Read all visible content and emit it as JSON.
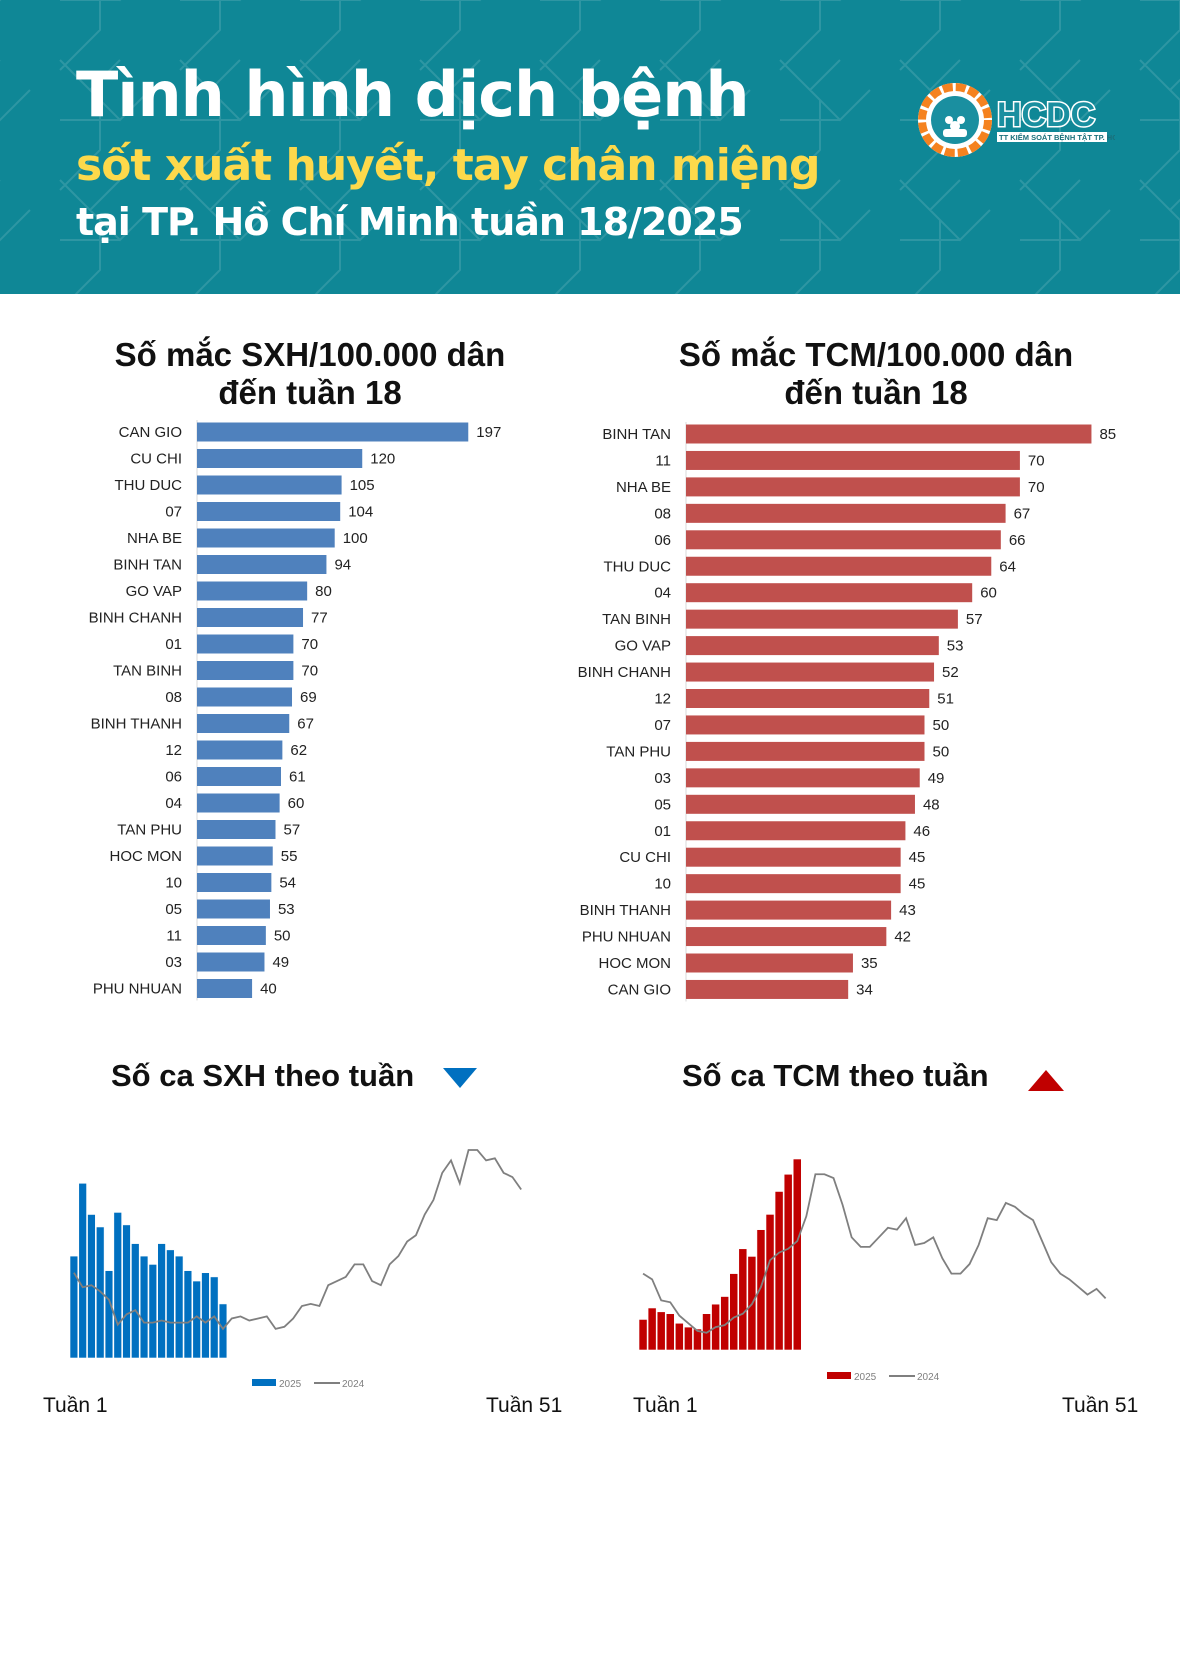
{
  "header": {
    "line1": "Tình hình dịch bệnh",
    "line2": "sốt xuất huyết, tay chân miệng",
    "line3": "tại TP. Hồ Chí Minh tuần 18/2025",
    "logo_text": "HCDC",
    "logo_subtext": "TT KIỂM SOÁT BỆNH TẬT TP. HCM",
    "bg_color": "#0f8796",
    "accent_color": "#fdd94b"
  },
  "chart_data": [
    {
      "type": "bar",
      "orientation": "horizontal",
      "title": "Số mắc SXH/100.000 dân đến tuần 18",
      "title_lines": [
        "Số mắc SXH/100.000 dân",
        "đến tuần 18"
      ],
      "color": "#4f81bd",
      "categories": [
        "CAN GIO",
        "CU CHI",
        "THU DUC",
        "07",
        "NHA BE",
        "BINH TAN",
        "GO VAP",
        "BINH CHANH",
        "01",
        "TAN BINH",
        "08",
        "BINH THANH",
        "12",
        "06",
        "04",
        "TAN PHU",
        "HOC MON",
        "10",
        "05",
        "11",
        "03",
        "PHU NHUAN"
      ],
      "values": [
        197,
        120,
        105,
        104,
        100,
        94,
        80,
        77,
        70,
        70,
        69,
        67,
        62,
        61,
        60,
        57,
        55,
        54,
        53,
        50,
        49,
        40
      ]
    },
    {
      "type": "bar",
      "orientation": "horizontal",
      "title": "Số mắc TCM/100.000 dân đến tuần 18",
      "title_lines": [
        "Số mắc TCM/100.000 dân",
        "đến tuần 18"
      ],
      "color": "#c0504d",
      "categories": [
        "BINH TAN",
        "11",
        "NHA BE",
        "08",
        "06",
        "THU DUC",
        "04",
        "TAN BINH",
        "GO VAP",
        "BINH CHANH",
        "12",
        "07",
        "TAN PHU",
        "03",
        "05",
        "01",
        "CU CHI",
        "10",
        "BINH THANH",
        "PHU NHUAN",
        "HOC MON",
        "CAN GIO"
      ],
      "values": [
        85,
        70,
        70,
        67,
        66,
        64,
        60,
        57,
        53,
        52,
        51,
        50,
        50,
        49,
        48,
        46,
        45,
        45,
        43,
        42,
        35,
        34
      ]
    },
    {
      "type": "bar+line",
      "title": "Số ca SXH theo tuần",
      "trend": "down",
      "trend_color": "#0070c0",
      "x_start_label": "Tuần 1",
      "x_end_label": "Tuần 51",
      "series": [
        {
          "name": "2025",
          "type": "bar",
          "color": "#0070c0",
          "values": [
            49,
            84,
            69,
            63,
            42,
            70,
            64,
            55,
            49,
            45,
            55,
            52,
            49,
            42,
            37,
            41,
            39,
            26
          ]
        },
        {
          "name": "2024",
          "type": "line",
          "color": "#7f7f7f",
          "values": [
            41,
            34,
            35,
            32,
            28,
            16,
            21,
            23,
            17,
            17,
            18,
            17,
            17,
            17,
            20,
            17,
            20,
            14,
            19,
            20,
            18,
            19,
            20,
            14,
            15,
            19,
            25,
            26,
            25,
            35,
            37,
            39,
            45,
            45,
            37,
            35,
            45,
            49,
            56,
            59,
            69,
            76,
            89,
            95,
            84,
            100,
            100,
            95,
            96,
            89,
            87,
            81
          ]
        }
      ]
    },
    {
      "type": "bar+line",
      "title": "Số ca TCM theo tuần",
      "trend": "up",
      "trend_color": "#c00000",
      "x_start_label": "Tuần 1",
      "x_end_label": "Tuần 51",
      "series": [
        {
          "name": "2025",
          "type": "bar",
          "color": "#c00000",
          "values": [
            16,
            22,
            20,
            19,
            14,
            12,
            11,
            19,
            24,
            28,
            40,
            53,
            49,
            63,
            71,
            83,
            92,
            100
          ]
        },
        {
          "name": "2024",
          "type": "line",
          "color": "#7f7f7f",
          "values": [
            40,
            37,
            26,
            25,
            18,
            14,
            10,
            9,
            12,
            13,
            17,
            19,
            24,
            33,
            47,
            51,
            53,
            57,
            70,
            92,
            92,
            90,
            76,
            59,
            54,
            54,
            59,
            64,
            63,
            69,
            55,
            56,
            59,
            48,
            40,
            40,
            45,
            55,
            69,
            68,
            77,
            75,
            71,
            68,
            57,
            46,
            40,
            37,
            33,
            29,
            32,
            27
          ]
        }
      ]
    }
  ]
}
